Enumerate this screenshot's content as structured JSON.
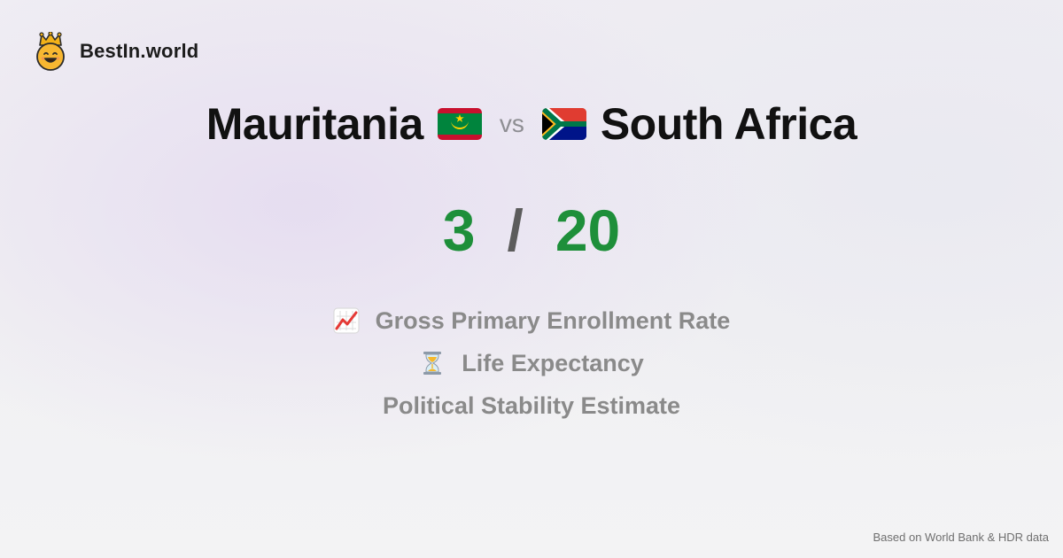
{
  "brand": {
    "name": "BestIn.world",
    "logo_icon": "crown-smiley-icon"
  },
  "comparison": {
    "left_country": "Mauritania",
    "left_flag_icon": "mauritania-flag-icon",
    "vs": "vs",
    "right_country": "South Africa",
    "right_flag_icon": "south-africa-flag-icon"
  },
  "score": {
    "left": "3",
    "separator": "/",
    "right": "20",
    "color": "#1e8f3a"
  },
  "metrics": [
    {
      "label": "Gross Primary Enrollment Rate",
      "icon": "chart-increasing-icon"
    },
    {
      "label": "Life Expectancy",
      "icon": "hourglass-icon"
    },
    {
      "label": "Political Stability Estimate",
      "icon": ""
    }
  ],
  "footer": {
    "source": "Based on World Bank & HDR data"
  }
}
